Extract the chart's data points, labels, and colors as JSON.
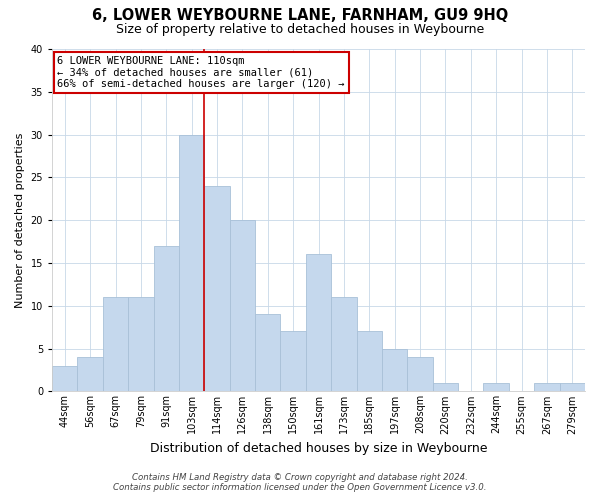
{
  "title": "6, LOWER WEYBOURNE LANE, FARNHAM, GU9 9HQ",
  "subtitle": "Size of property relative to detached houses in Weybourne",
  "xlabel": "Distribution of detached houses by size in Weybourne",
  "ylabel": "Number of detached properties",
  "bin_labels": [
    "44sqm",
    "56sqm",
    "67sqm",
    "79sqm",
    "91sqm",
    "103sqm",
    "114sqm",
    "126sqm",
    "138sqm",
    "150sqm",
    "161sqm",
    "173sqm",
    "185sqm",
    "197sqm",
    "208sqm",
    "220sqm",
    "232sqm",
    "244sqm",
    "255sqm",
    "267sqm",
    "279sqm"
  ],
  "bar_heights": [
    3,
    4,
    11,
    11,
    17,
    30,
    24,
    20,
    9,
    7,
    16,
    11,
    7,
    5,
    4,
    1,
    0,
    1,
    0,
    1,
    1
  ],
  "bar_color": "#c5d8ed",
  "bar_edge_color": "#a8c0d8",
  "vline_x": 6.0,
  "vline_color": "#cc0000",
  "annotation_line1": "6 LOWER WEYBOURNE LANE: 110sqm",
  "annotation_line2": "← 34% of detached houses are smaller (61)",
  "annotation_line3": "66% of semi-detached houses are larger (120) →",
  "annotation_box_color": "#ffffff",
  "annotation_box_edge": "#cc0000",
  "ylim": [
    0,
    40
  ],
  "yticks": [
    0,
    5,
    10,
    15,
    20,
    25,
    30,
    35,
    40
  ],
  "footer_line1": "Contains HM Land Registry data © Crown copyright and database right 2024.",
  "footer_line2": "Contains public sector information licensed under the Open Government Licence v3.0.",
  "background_color": "#ffffff",
  "grid_color": "#c8d8e8",
  "title_fontsize": 10.5,
  "subtitle_fontsize": 9,
  "xlabel_fontsize": 9,
  "ylabel_fontsize": 8,
  "tick_fontsize": 7,
  "annotation_fontsize": 7.5,
  "footer_fontsize": 6.2
}
